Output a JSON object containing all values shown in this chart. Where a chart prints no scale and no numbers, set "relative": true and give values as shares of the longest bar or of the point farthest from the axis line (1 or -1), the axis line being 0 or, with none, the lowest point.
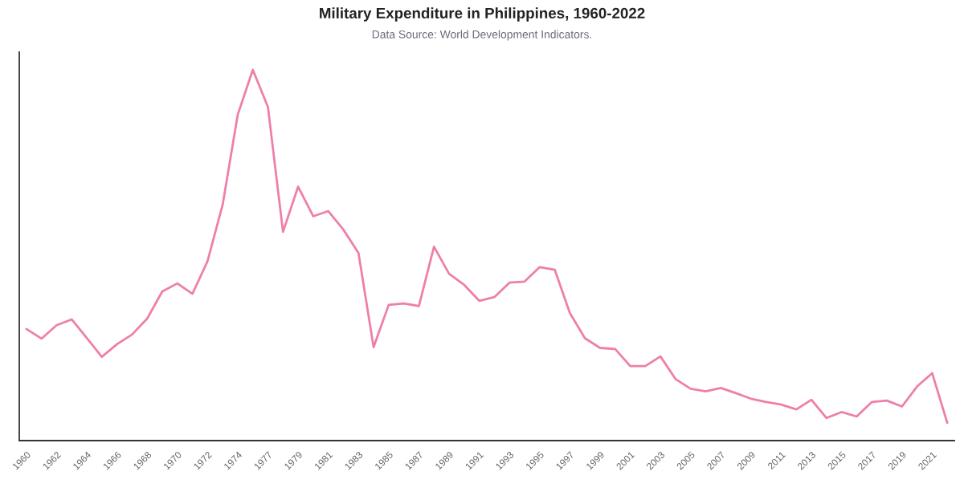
{
  "chart_data": {
    "type": "line",
    "title": "Military Expenditure in Philippines, 1960-2022",
    "subtitle": "Data Source: World Development Indicators.",
    "categories": [
      "1960",
      null,
      "1962",
      null,
      "1964",
      null,
      "1966",
      null,
      "1968",
      null,
      "1970",
      null,
      "1972",
      null,
      "1974",
      null,
      "1977",
      null,
      "1979",
      null,
      "1981",
      null,
      "1983",
      null,
      "1985",
      null,
      "1987",
      null,
      "1989",
      null,
      "1991",
      null,
      "1993",
      null,
      "1995",
      null,
      "1997",
      null,
      "1999",
      null,
      "2001",
      null,
      "2003",
      null,
      "2005",
      null,
      "2007",
      null,
      "2009",
      null,
      "2011",
      null,
      "2013",
      null,
      "2015",
      null,
      "2017",
      null,
      "2019",
      null,
      "2021",
      null
    ],
    "relative": true,
    "series": [
      {
        "color": "#ee7fab",
        "values": [
          0.301,
          0.275,
          0.311,
          0.327,
          0.277,
          0.226,
          0.26,
          0.286,
          0.329,
          0.402,
          0.424,
          0.396,
          0.484,
          0.636,
          0.879,
          1,
          0.9,
          0.563,
          0.685,
          0.605,
          0.619,
          0.569,
          0.506,
          0.252,
          0.366,
          0.37,
          0.363,
          0.523,
          0.45,
          0.42,
          0.377,
          0.387,
          0.426,
          0.429,
          0.468,
          0.461,
          0.344,
          0.276,
          0.25,
          0.247,
          0.201,
          0.201,
          0.227,
          0.166,
          0.14,
          0.133,
          0.142,
          0.128,
          0.113,
          0.104,
          0.097,
          0.084,
          0.11,
          0.061,
          0.077,
          0.065,
          0.104,
          0.108,
          0.092,
          0.146,
          0.182,
          0.048
        ]
      }
    ]
  }
}
